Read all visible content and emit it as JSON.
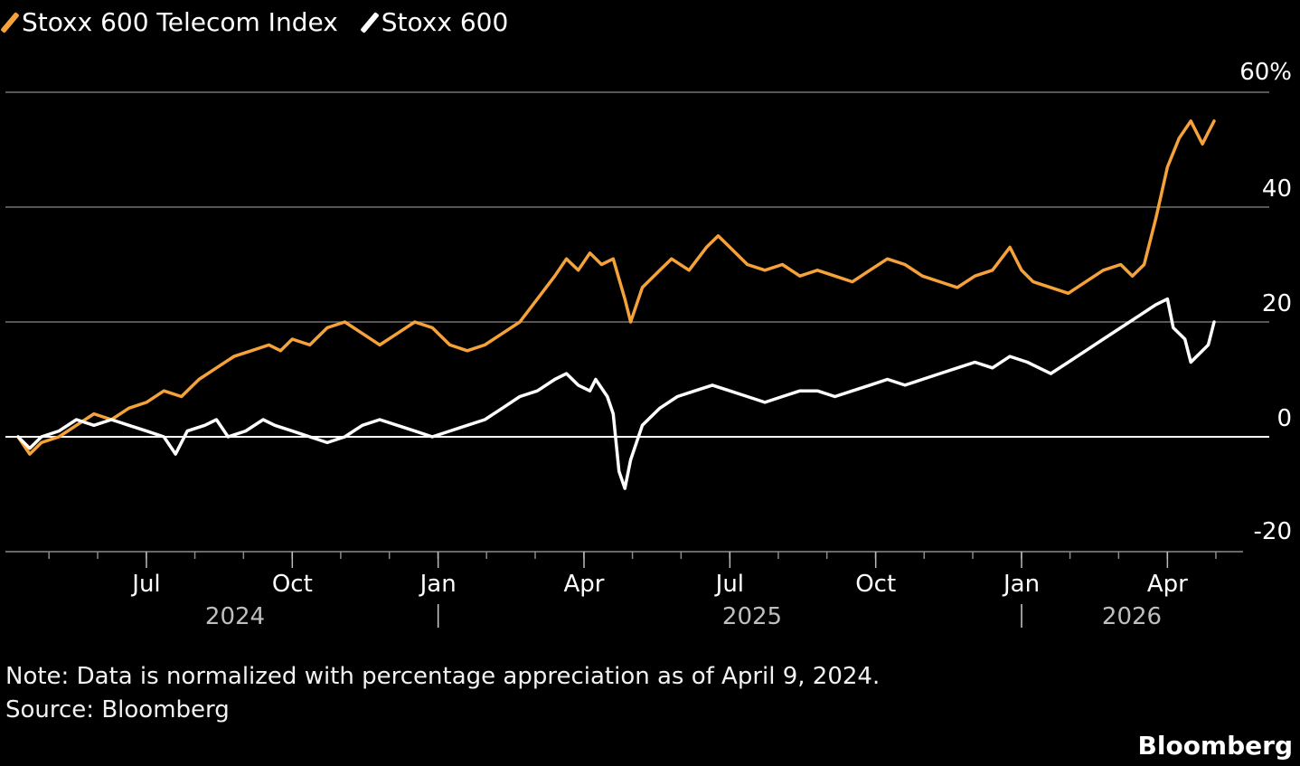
{
  "chart_data": {
    "type": "line",
    "legend": [
      "Stoxx 600 Telecom Index",
      "Stoxx 600"
    ],
    "x_tick_labels": [
      "Jul",
      "Oct",
      "Jan",
      "Apr",
      "Jul",
      "Oct",
      "Jan",
      "Apr"
    ],
    "x_year_labels": [
      "2024",
      "2025",
      "2026"
    ],
    "y_tick_labels": [
      "60%",
      "40",
      "20",
      "0",
      "-20"
    ],
    "ylim": [
      -20,
      60
    ],
    "x_range": [
      2024.28,
      2026.33
    ],
    "colors": {
      "Stoxx 600 Telecom Index": "#f5a23a",
      "Stoxx 600": "#ffffff",
      "background": "#000000"
    },
    "series": [
      {
        "name": "Stoxx 600 Telecom Index",
        "points": [
          [
            2024.28,
            0
          ],
          [
            2024.3,
            -3
          ],
          [
            2024.32,
            -1
          ],
          [
            2024.35,
            0
          ],
          [
            2024.38,
            2
          ],
          [
            2024.41,
            4
          ],
          [
            2024.44,
            3
          ],
          [
            2024.47,
            5
          ],
          [
            2024.5,
            6
          ],
          [
            2024.53,
            8
          ],
          [
            2024.56,
            7
          ],
          [
            2024.59,
            10
          ],
          [
            2024.62,
            12
          ],
          [
            2024.65,
            14
          ],
          [
            2024.68,
            15
          ],
          [
            2024.71,
            16
          ],
          [
            2024.73,
            15
          ],
          [
            2024.75,
            17
          ],
          [
            2024.78,
            16
          ],
          [
            2024.81,
            19
          ],
          [
            2024.84,
            20
          ],
          [
            2024.87,
            18
          ],
          [
            2024.9,
            16
          ],
          [
            2024.93,
            18
          ],
          [
            2024.96,
            20
          ],
          [
            2024.99,
            19
          ],
          [
            2025.02,
            16
          ],
          [
            2025.05,
            15
          ],
          [
            2025.08,
            16
          ],
          [
            2025.11,
            18
          ],
          [
            2025.14,
            20
          ],
          [
            2025.17,
            24
          ],
          [
            2025.2,
            28
          ],
          [
            2025.22,
            31
          ],
          [
            2025.24,
            29
          ],
          [
            2025.26,
            32
          ],
          [
            2025.28,
            30
          ],
          [
            2025.3,
            31
          ],
          [
            2025.32,
            24
          ],
          [
            2025.33,
            20
          ],
          [
            2025.35,
            26
          ],
          [
            2025.38,
            29
          ],
          [
            2025.4,
            31
          ],
          [
            2025.43,
            29
          ],
          [
            2025.46,
            33
          ],
          [
            2025.48,
            35
          ],
          [
            2025.5,
            33
          ],
          [
            2025.53,
            30
          ],
          [
            2025.56,
            29
          ],
          [
            2025.59,
            30
          ],
          [
            2025.62,
            28
          ],
          [
            2025.65,
            29
          ],
          [
            2025.68,
            28
          ],
          [
            2025.71,
            27
          ],
          [
            2025.74,
            29
          ],
          [
            2025.77,
            31
          ],
          [
            2025.8,
            30
          ],
          [
            2025.83,
            28
          ],
          [
            2025.86,
            27
          ],
          [
            2025.89,
            26
          ],
          [
            2025.92,
            28
          ],
          [
            2025.95,
            29
          ],
          [
            2025.98,
            33
          ],
          [
            2026.0,
            29
          ],
          [
            2026.02,
            27
          ],
          [
            2026.05,
            26
          ],
          [
            2026.08,
            25
          ],
          [
            2026.11,
            27
          ],
          [
            2026.14,
            29
          ],
          [
            2026.17,
            30
          ],
          [
            2026.19,
            28
          ],
          [
            2026.21,
            30
          ],
          [
            2026.23,
            38
          ],
          [
            2026.25,
            47
          ],
          [
            2026.27,
            52
          ],
          [
            2026.29,
            55
          ],
          [
            2026.31,
            51
          ],
          [
            2026.32,
            53
          ],
          [
            2026.33,
            55
          ]
        ]
      },
      {
        "name": "Stoxx 600",
        "points": [
          [
            2024.28,
            0
          ],
          [
            2024.3,
            -2
          ],
          [
            2024.32,
            0
          ],
          [
            2024.35,
            1
          ],
          [
            2024.38,
            3
          ],
          [
            2024.41,
            2
          ],
          [
            2024.44,
            3
          ],
          [
            2024.47,
            2
          ],
          [
            2024.5,
            1
          ],
          [
            2024.53,
            0
          ],
          [
            2024.55,
            -3
          ],
          [
            2024.57,
            1
          ],
          [
            2024.6,
            2
          ],
          [
            2024.62,
            3
          ],
          [
            2024.64,
            0
          ],
          [
            2024.67,
            1
          ],
          [
            2024.7,
            3
          ],
          [
            2024.72,
            2
          ],
          [
            2024.75,
            1
          ],
          [
            2024.78,
            0
          ],
          [
            2024.81,
            -1
          ],
          [
            2024.84,
            0
          ],
          [
            2024.87,
            2
          ],
          [
            2024.9,
            3
          ],
          [
            2024.93,
            2
          ],
          [
            2024.96,
            1
          ],
          [
            2024.99,
            0
          ],
          [
            2025.02,
            1
          ],
          [
            2025.05,
            2
          ],
          [
            2025.08,
            3
          ],
          [
            2025.11,
            5
          ],
          [
            2025.14,
            7
          ],
          [
            2025.17,
            8
          ],
          [
            2025.2,
            10
          ],
          [
            2025.22,
            11
          ],
          [
            2025.24,
            9
          ],
          [
            2025.26,
            8
          ],
          [
            2025.27,
            10
          ],
          [
            2025.29,
            7
          ],
          [
            2025.3,
            4
          ],
          [
            2025.31,
            -6
          ],
          [
            2025.32,
            -9
          ],
          [
            2025.33,
            -4
          ],
          [
            2025.35,
            2
          ],
          [
            2025.38,
            5
          ],
          [
            2025.41,
            7
          ],
          [
            2025.44,
            8
          ],
          [
            2025.47,
            9
          ],
          [
            2025.5,
            8
          ],
          [
            2025.53,
            7
          ],
          [
            2025.56,
            6
          ],
          [
            2025.59,
            7
          ],
          [
            2025.62,
            8
          ],
          [
            2025.65,
            8
          ],
          [
            2025.68,
            7
          ],
          [
            2025.71,
            8
          ],
          [
            2025.74,
            9
          ],
          [
            2025.77,
            10
          ],
          [
            2025.8,
            9
          ],
          [
            2025.83,
            10
          ],
          [
            2025.86,
            11
          ],
          [
            2025.89,
            12
          ],
          [
            2025.92,
            13
          ],
          [
            2025.95,
            12
          ],
          [
            2025.98,
            14
          ],
          [
            2026.01,
            13
          ],
          [
            2026.03,
            12
          ],
          [
            2026.05,
            11
          ],
          [
            2026.08,
            13
          ],
          [
            2026.11,
            15
          ],
          [
            2026.14,
            17
          ],
          [
            2026.17,
            19
          ],
          [
            2026.2,
            21
          ],
          [
            2026.23,
            23
          ],
          [
            2026.25,
            24
          ],
          [
            2026.26,
            19
          ],
          [
            2026.28,
            17
          ],
          [
            2026.29,
            13
          ],
          [
            2026.31,
            15
          ],
          [
            2026.32,
            16
          ],
          [
            2026.33,
            20
          ]
        ]
      }
    ]
  },
  "note": "Note: Data is normalized with percentage appreciation as of April 9, 2024.",
  "source": "Source: Bloomberg",
  "brand": "Bloomberg"
}
